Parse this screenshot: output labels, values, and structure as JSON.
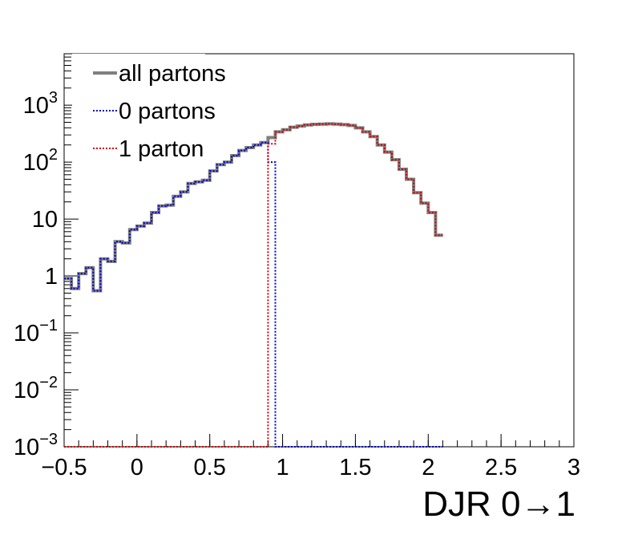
{
  "chart_data": {
    "type": "line",
    "title": "",
    "xlabel": "DJR 0→1",
    "ylabel": "",
    "xlim": [
      -0.5,
      3
    ],
    "ylim": [
      0.001,
      8000
    ],
    "y_scale": "log",
    "grid": false,
    "legend_position": "top-left",
    "x_ticks": [
      {
        "v": -0.5,
        "label": "−0.5"
      },
      {
        "v": 0,
        "label": "0"
      },
      {
        "v": 0.5,
        "label": "0.5"
      },
      {
        "v": 1,
        "label": "1"
      },
      {
        "v": 1.5,
        "label": "1.5"
      },
      {
        "v": 2,
        "label": "2"
      },
      {
        "v": 2.5,
        "label": "2.5"
      },
      {
        "v": 3,
        "label": "3"
      }
    ],
    "y_ticks": [
      {
        "v": 0.001,
        "base": "10",
        "exp": "−3"
      },
      {
        "v": 0.01,
        "base": "10",
        "exp": "−2"
      },
      {
        "v": 0.1,
        "base": "10",
        "exp": "−1"
      },
      {
        "v": 1,
        "base": "1",
        "exp": ""
      },
      {
        "v": 10,
        "base": "10",
        "exp": ""
      },
      {
        "v": 100,
        "base": "10",
        "exp": "2"
      },
      {
        "v": 1000,
        "base": "10",
        "exp": "3"
      }
    ],
    "bins": {
      "start": -0.5,
      "width": 0.05
    },
    "series": [
      {
        "name": "all partons",
        "color": "#808080",
        "style": "solid",
        "values": [
          0.9,
          0.6,
          1.1,
          1.4,
          0.55,
          2.0,
          1.8,
          4.0,
          3.8,
          6.5,
          7.5,
          8.5,
          13,
          17,
          17.5,
          25,
          30,
          42,
          45,
          48,
          70,
          90,
          100,
          130,
          160,
          180,
          200,
          220,
          270,
          340,
          370,
          410,
          430,
          450,
          460,
          465,
          470,
          465,
          455,
          440,
          400,
          340,
          280,
          200,
          150,
          110,
          75,
          50,
          29,
          19,
          13,
          5.2
        ]
      },
      {
        "name": "0 partons",
        "color": "#0000cc",
        "style": "dotted",
        "values": [
          0.9,
          0.6,
          1.1,
          1.4,
          0.55,
          2.0,
          1.8,
          4.0,
          3.8,
          6.5,
          7.5,
          8.5,
          13,
          17,
          17.5,
          25,
          30,
          42,
          45,
          48,
          70,
          90,
          100,
          130,
          160,
          180,
          200,
          220,
          100,
          0.001,
          0.001,
          0.001,
          0.001,
          0.001,
          0.001,
          0.001,
          0.001,
          0.001,
          0.001,
          0.001,
          0.001,
          0.001,
          0.001,
          0.001,
          0.001,
          0.001,
          0.001,
          0.001,
          0.001,
          0.001,
          0.001,
          0.001
        ]
      },
      {
        "name": "1 parton",
        "color": "#cc0000",
        "style": "dotted",
        "values": [
          0.001,
          0.001,
          0.001,
          0.001,
          0.001,
          0.001,
          0.001,
          0.001,
          0.001,
          0.001,
          0.001,
          0.001,
          0.001,
          0.001,
          0.001,
          0.001,
          0.001,
          0.001,
          0.001,
          0.001,
          0.001,
          0.001,
          0.001,
          0.001,
          0.001,
          0.001,
          0.001,
          0.001,
          210,
          340,
          370,
          410,
          430,
          450,
          460,
          465,
          470,
          465,
          455,
          440,
          400,
          340,
          280,
          200,
          150,
          110,
          75,
          50,
          29,
          19,
          13,
          5.2
        ]
      }
    ]
  }
}
